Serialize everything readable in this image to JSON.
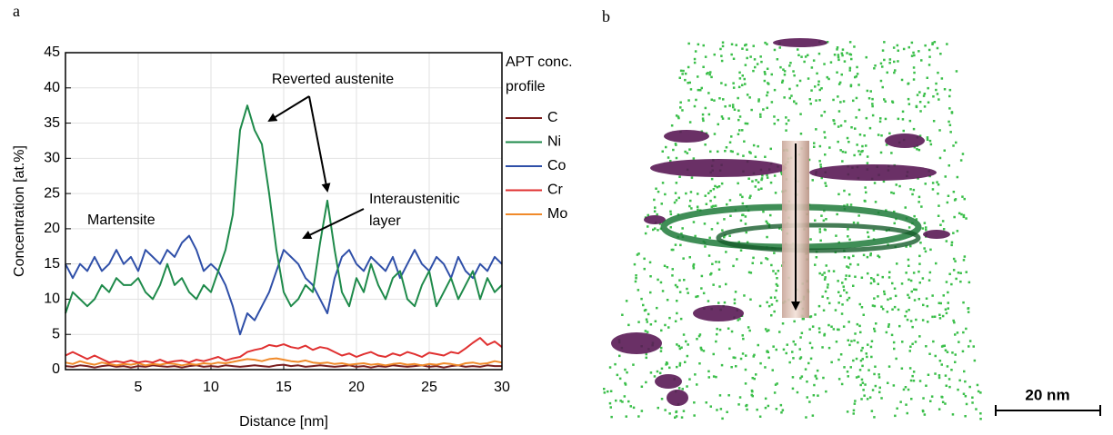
{
  "panel_labels": [
    "a",
    "b"
  ],
  "chart_data": {
    "type": "line",
    "x_label": "Distance [nm]",
    "y_label": "Concentration [at.%]",
    "legend_title": [
      "APT conc.",
      "profile"
    ],
    "annotations": [
      "Reverted austenite",
      "Interaustenitic",
      "layer",
      "Martensite"
    ],
    "xlim": [
      0,
      30
    ],
    "xticks": [
      5,
      10,
      15,
      20,
      25,
      30
    ],
    "ylim": [
      0,
      45
    ],
    "yticks": [
      0,
      5,
      10,
      15,
      20,
      25,
      30,
      35,
      40,
      45
    ],
    "grid": true,
    "x": [
      0,
      0.5,
      1,
      1.5,
      2,
      2.5,
      3,
      3.5,
      4,
      4.5,
      5,
      5.5,
      6,
      6.5,
      7,
      7.5,
      8,
      8.5,
      9,
      9.5,
      10,
      10.5,
      11,
      11.5,
      12,
      12.5,
      13,
      13.5,
      14,
      14.5,
      15,
      15.5,
      16,
      16.5,
      17,
      17.5,
      18,
      18.5,
      19,
      19.5,
      20,
      20.5,
      21,
      21.5,
      22,
      22.5,
      23,
      23.5,
      24,
      24.5,
      25,
      25.5,
      26,
      26.5,
      27,
      27.5,
      28,
      28.5,
      29,
      29.5,
      30
    ],
    "series": [
      {
        "name": "C",
        "color": "#7a1e1e",
        "values": [
          0.5,
          0.4,
          0.6,
          0.5,
          0.3,
          0.5,
          0.6,
          0.4,
          0.5,
          0.3,
          0.5,
          0.4,
          0.6,
          0.5,
          0.4,
          0.5,
          0.3,
          0.5,
          0.6,
          0.4,
          0.5,
          0.4,
          0.6,
          0.5,
          0.4,
          0.5,
          0.6,
          0.5,
          0.4,
          0.6,
          0.7,
          0.5,
          0.6,
          0.4,
          0.5,
          0.6,
          0.5,
          0.4,
          0.5,
          0.6,
          0.4,
          0.5,
          0.3,
          0.5,
          0.4,
          0.6,
          0.5,
          0.4,
          0.5,
          0.6,
          0.4,
          0.5,
          0.3,
          0.5,
          0.6,
          0.4,
          0.5,
          0.4,
          0.6,
          0.5,
          0.5
        ]
      },
      {
        "name": "Ni",
        "color": "#1e8a4a",
        "values": [
          8,
          11,
          10,
          9,
          10,
          12,
          11,
          13,
          12,
          12,
          13,
          11,
          10,
          12,
          15,
          12,
          13,
          11,
          10,
          12,
          11,
          14,
          17,
          22,
          34,
          37.5,
          34,
          32,
          25,
          17,
          11,
          9,
          10,
          12,
          11,
          18,
          24,
          17,
          11,
          9,
          13,
          11,
          15,
          12,
          10,
          13,
          14,
          10,
          9,
          12,
          14,
          9,
          11,
          13,
          10,
          12,
          14,
          10,
          13,
          11,
          12
        ]
      },
      {
        "name": "Co",
        "color": "#2f4fa8",
        "values": [
          15,
          13,
          15,
          14,
          16,
          14,
          15,
          17,
          15,
          16,
          14,
          17,
          16,
          15,
          17,
          16,
          18,
          19,
          17,
          14,
          15,
          14,
          12,
          9,
          5,
          8,
          7,
          9,
          11,
          14,
          17,
          16,
          15,
          13,
          12,
          10,
          8,
          13,
          16,
          17,
          15,
          14,
          16,
          15,
          14,
          16,
          13,
          15,
          17,
          15,
          14,
          16,
          15,
          13,
          16,
          14,
          13,
          15,
          14,
          16,
          15
        ]
      },
      {
        "name": "Cr",
        "color": "#e03030",
        "values": [
          2,
          2.5,
          2,
          1.5,
          2,
          1.5,
          1,
          1.2,
          1,
          1.3,
          1,
          1.2,
          1,
          1.4,
          1,
          1.2,
          1.3,
          1,
          1.4,
          1.2,
          1.5,
          1.8,
          1.3,
          1.6,
          1.8,
          2.5,
          2.8,
          3,
          3.5,
          3.3,
          3.6,
          3.2,
          3,
          3.4,
          2.8,
          3.2,
          3,
          2.5,
          2,
          2.3,
          1.8,
          2.2,
          2.5,
          2,
          1.8,
          2.3,
          2,
          2.5,
          2.2,
          1.8,
          2.4,
          2.2,
          2,
          2.5,
          2.3,
          3,
          3.8,
          4.5,
          3.5,
          4,
          3.2
        ]
      },
      {
        "name": "Mo",
        "color": "#f08a2a",
        "values": [
          1,
          0.8,
          1.2,
          0.9,
          0.7,
          1,
          0.8,
          0.6,
          0.8,
          0.7,
          0.9,
          0.6,
          0.8,
          0.7,
          0.9,
          0.8,
          0.6,
          0.8,
          0.7,
          0.9,
          0.8,
          1,
          0.9,
          1.1,
          1.3,
          1.5,
          1.4,
          1.2,
          1.5,
          1.6,
          1.4,
          1.2,
          1.1,
          1.3,
          1,
          0.9,
          1,
          0.8,
          0.9,
          0.7,
          0.8,
          0.9,
          0.7,
          0.8,
          0.6,
          0.8,
          0.9,
          0.7,
          0.8,
          0.6,
          0.8,
          0.7,
          0.9,
          0.8,
          0.6,
          0.9,
          1,
          0.8,
          0.9,
          1.2,
          1
        ]
      }
    ]
  },
  "image": {
    "scale_bar": "20 nm"
  }
}
